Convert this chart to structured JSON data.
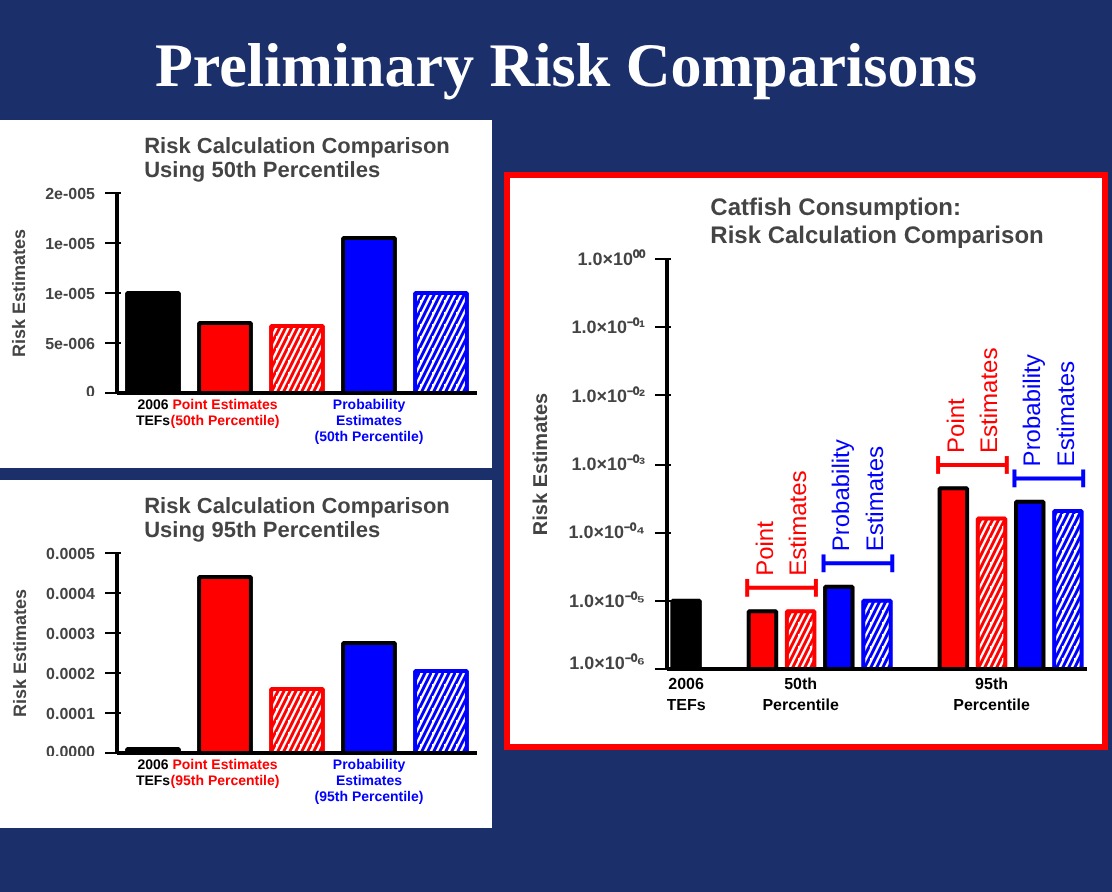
{
  "chart_data": [
    {
      "type": "other",
      "title": "Preliminary Risk Comparisons"
    },
    {
      "type": "bar",
      "title": "Risk Calculation Comparison\nUsing 50th Percentiles",
      "ylabel": "Risk Estimates",
      "categories": [
        "2006\nTEFs",
        "Point Estimates\n(50th Percentile)",
        null,
        "Probability\nEstimates\n(50th Percentile)",
        null
      ],
      "values": [
        1e-05,
        7e-06,
        6.7e-06,
        1.55e-05,
        1e-05
      ],
      "colors": [
        "#000000",
        "#ff0000",
        "#ff0000",
        "#0000ff",
        "#0000ff"
      ],
      "ylim": [
        0,
        2e-05
      ],
      "yticks": [
        {
          "value": 0,
          "label": "0"
        },
        {
          "value": 5e-06,
          "label": "5e-006"
        },
        {
          "value": 1e-05,
          "label": "1e-005"
        },
        {
          "value": 1.5e-05,
          "label": "1e-005"
        },
        {
          "value": 2e-05,
          "label": "2e-005"
        }
      ]
    },
    {
      "type": "bar",
      "title": "Risk Calculation Comparison\nUsing 95th Percentiles",
      "ylabel": "Risk Estimates",
      "categories": [
        "2006\nTEFs",
        "Point Estimates\n(95th Percentile)",
        null,
        "Probability\nEstimates\n(95th Percentile)",
        null
      ],
      "values": [
        1e-05,
        0.00044,
        0.00016,
        0.000275,
        0.000205
      ],
      "colors": [
        "#000000",
        "#ff0000",
        "#ff0000",
        "#0000ff",
        "#0000ff"
      ],
      "ylim": [
        0,
        0.0005
      ],
      "yticks": [
        {
          "value": 0,
          "label": "0.0000"
        },
        {
          "value": 0.0001,
          "label": "0.0001"
        },
        {
          "value": 0.0002,
          "label": "0.0002"
        },
        {
          "value": 0.0003,
          "label": "0.0003"
        },
        {
          "value": 0.0004,
          "label": "0.0004"
        },
        {
          "value": 0.0005,
          "label": "0.0005"
        }
      ]
    },
    {
      "type": "bar",
      "title": "Catfish Consumption:\nRisk Calculation Comparison",
      "ylabel": "Risk Estimates",
      "log": true,
      "categories": [
        "2006\nTEFs",
        null,
        null,
        "50th\nPercentile",
        null,
        null,
        null,
        null,
        "95th\nPercentile",
        null,
        null
      ],
      "values": [
        1e-05,
        null,
        7e-06,
        7e-06,
        1.6e-05,
        1e-05,
        null,
        0.00044,
        0.00016,
        0.00028,
        0.000205
      ],
      "colors": [
        "#000000",
        null,
        "#ff0000",
        "#ff0000",
        "#0000ff",
        "#0000ff",
        null,
        "#ff0000",
        "#ff0000",
        "#0000ff",
        "#0000ff"
      ],
      "annotations": [
        "Point Estimates",
        "Probability Estimates"
      ],
      "ylim": [
        1e-06,
        1
      ],
      "yticks": [
        {
          "value": 1e-06,
          "label": "1.0×10⁻⁰⁶"
        },
        {
          "value": 1e-05,
          "label": "1.0×10⁻⁰⁵"
        },
        {
          "value": 0.0001,
          "label": "1.0×10⁻⁰⁴"
        },
        {
          "value": 0.001,
          "label": "1.0×10⁻⁰³"
        },
        {
          "value": 0.01,
          "label": "1.0×10⁻⁰²"
        },
        {
          "value": 0.1,
          "label": "1.0×10⁻⁰¹"
        },
        {
          "value": 1,
          "label": "1.0×10⁰⁰"
        }
      ]
    }
  ]
}
